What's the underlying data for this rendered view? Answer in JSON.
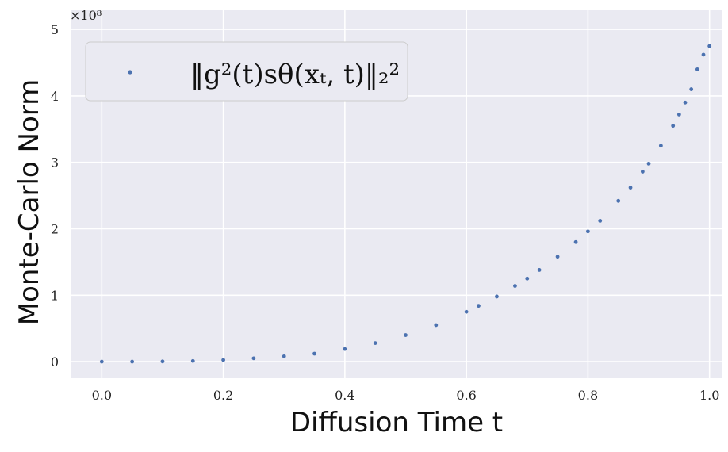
{
  "chart_data": {
    "type": "scatter",
    "xlabel": "Diffusion Time t",
    "ylabel": "Monte-Carlo Norm",
    "xlim": [
      -0.05,
      1.02
    ],
    "ylim": [
      -0.25,
      5.3
    ],
    "y_scale_label": "×10⁸",
    "x_ticks": [
      "0.0",
      "0.2",
      "0.4",
      "0.6",
      "0.8",
      "1.0"
    ],
    "x_tick_values": [
      0.0,
      0.2,
      0.4,
      0.6,
      0.8,
      1.0
    ],
    "y_ticks": [
      "0",
      "1",
      "2",
      "3",
      "4",
      "5"
    ],
    "y_tick_values": [
      0,
      1,
      2,
      3,
      4,
      5
    ],
    "grid": true,
    "legend_position": "upper-left",
    "series": [
      {
        "name": "‖g²(t)sθ(xₜ, t)‖₂²",
        "color": "#4c72b0",
        "x": [
          0.0,
          0.05,
          0.1,
          0.15,
          0.2,
          0.25,
          0.3,
          0.35,
          0.4,
          0.45,
          0.5,
          0.55,
          0.6,
          0.62,
          0.65,
          0.68,
          0.7,
          0.72,
          0.75,
          0.78,
          0.8,
          0.82,
          0.85,
          0.87,
          0.89,
          0.9,
          0.92,
          0.94,
          0.95,
          0.96,
          0.97,
          0.98,
          0.99,
          1.0
        ],
        "y": [
          0.0,
          0.0,
          0.003,
          0.01,
          0.025,
          0.05,
          0.08,
          0.12,
          0.19,
          0.28,
          0.4,
          0.55,
          0.75,
          0.84,
          0.98,
          1.14,
          1.25,
          1.38,
          1.58,
          1.8,
          1.96,
          2.12,
          2.42,
          2.62,
          2.86,
          2.98,
          3.25,
          3.55,
          3.72,
          3.9,
          4.1,
          4.4,
          4.62,
          4.75
        ]
      }
    ]
  }
}
